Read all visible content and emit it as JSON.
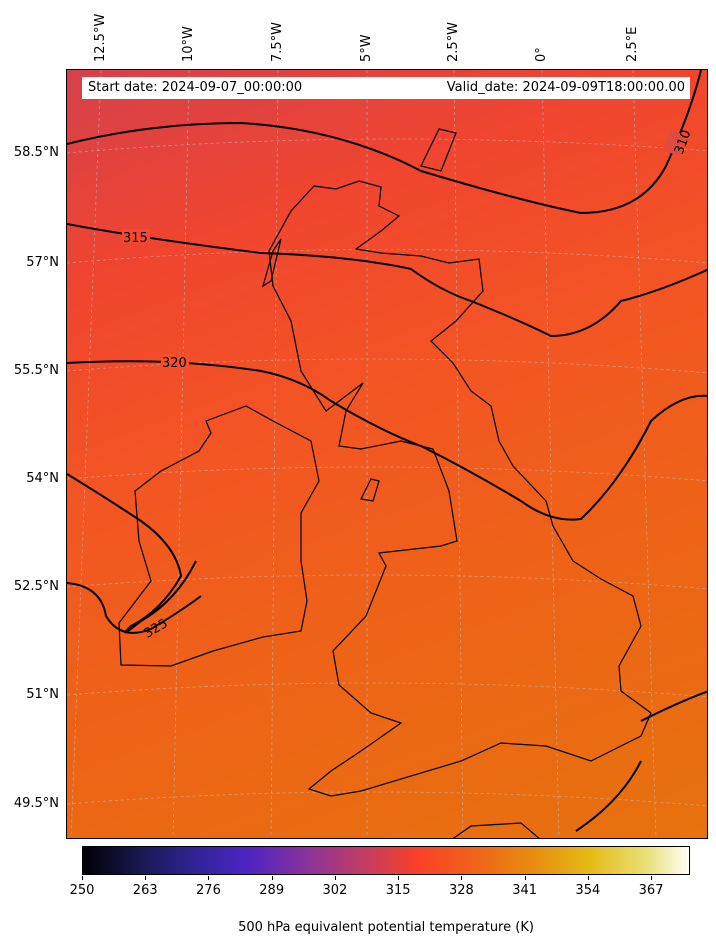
{
  "map": {
    "lon_labels": [
      "12.5°W",
      "10°W",
      "7.5°W",
      "5°W",
      "2.5°W",
      "0°",
      "2.5°E"
    ],
    "lat_labels": [
      "58.5°N",
      "57°N",
      "55.5°N",
      "54°N",
      "52.5°N",
      "51°N",
      "49.5°N"
    ],
    "start_date": "Start date: 2024-09-07_00:00:00",
    "valid_date": "Valid_date: 2024-09-09T18:00:00.00",
    "contour_labels": [
      "310",
      "315",
      "320",
      "325"
    ]
  },
  "colorbar": {
    "label": "500 hPa equivalent potential temperature (K)",
    "ticks": [
      "250",
      "263",
      "276",
      "289",
      "302",
      "315",
      "328",
      "341",
      "354",
      "367"
    ],
    "range": [
      250,
      375
    ],
    "colors": [
      "#000004",
      "#4c24c4",
      "#fa4028",
      "#e6bc18",
      "#fffff6"
    ]
  }
}
